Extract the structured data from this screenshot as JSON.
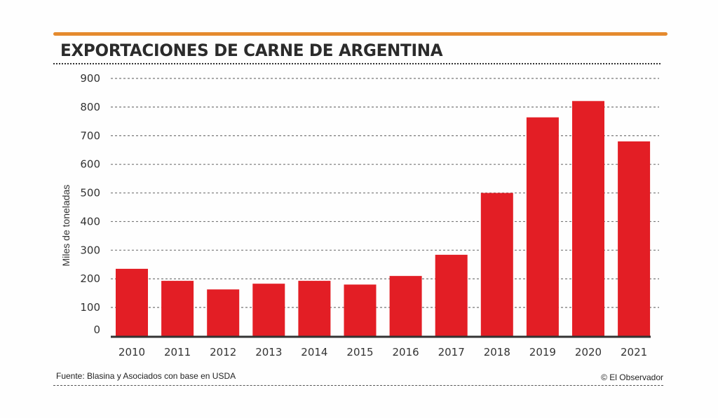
{
  "colors": {
    "accent_rule": "#e58a2e",
    "bar": "#e31e25",
    "text": "#2b2b2b",
    "grid": "#777777",
    "axis": "#333333"
  },
  "chart_data": {
    "type": "bar",
    "title": "EXPORTACIONES DE CARNE DE ARGENTINA",
    "xlabel": "",
    "ylabel": "Miles de toneladas",
    "categories": [
      "2010",
      "2011",
      "2012",
      "2013",
      "2014",
      "2015",
      "2016",
      "2017",
      "2018",
      "2019",
      "2020",
      "2021"
    ],
    "values": [
      235,
      193,
      163,
      183,
      193,
      180,
      210,
      284,
      500,
      764,
      821,
      680
    ],
    "ylim": [
      0,
      900
    ],
    "yticks": [
      0,
      100,
      200,
      300,
      400,
      500,
      600,
      700,
      800,
      900
    ],
    "grid": true,
    "legend": "none"
  },
  "footer": {
    "source": "Fuente: Blasina y Asociados con base en USDA",
    "credit": "© El Observador"
  }
}
